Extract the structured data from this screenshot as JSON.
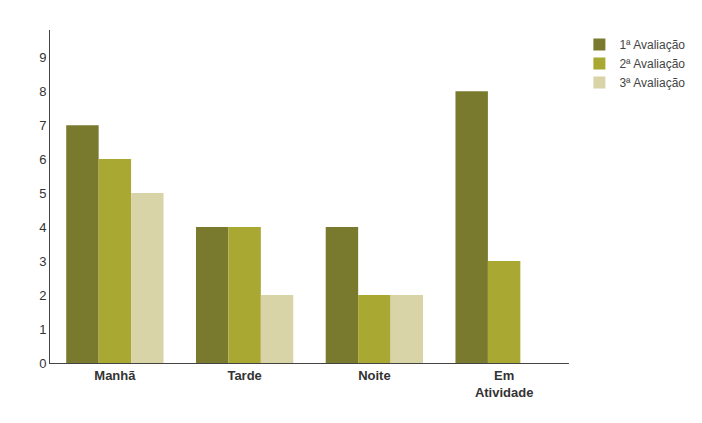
{
  "chart_data": {
    "type": "bar",
    "categories": [
      "Manhã",
      "Tarde",
      "Noite",
      "Em\nAtividade"
    ],
    "series": [
      {
        "name": "1ª Avaliação",
        "color": "#7a7a2e",
        "values": [
          7,
          4,
          4,
          8
        ]
      },
      {
        "name": "2ª Avaliação",
        "color": "#a8a832",
        "values": [
          6,
          4,
          2,
          3
        ]
      },
      {
        "name": "3ª Avaliação",
        "color": "#d8d4a8",
        "values": [
          5,
          2,
          2,
          0
        ]
      }
    ],
    "ylim": [
      0,
      9.8
    ],
    "yticks": [
      0,
      1,
      2,
      3,
      4,
      5,
      6,
      7,
      8,
      9
    ],
    "grid": false,
    "legend": "upper right"
  }
}
